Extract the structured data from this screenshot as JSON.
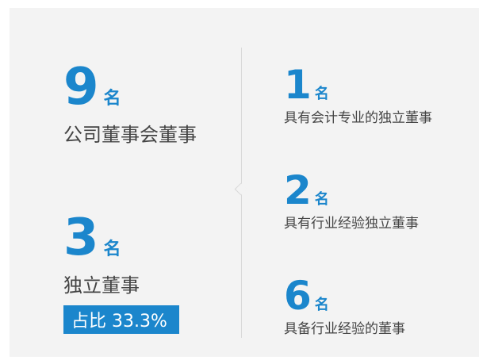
{
  "left": [
    {
      "number": "9",
      "unit": "名",
      "label": "公司董事会董事"
    },
    {
      "number": "3",
      "unit": "名",
      "label": "独立董事",
      "badge": "占比 33.3%"
    }
  ],
  "right": [
    {
      "number": "1",
      "unit": "名",
      "label": "具有会计专业的独立董事"
    },
    {
      "number": "2",
      "unit": "名",
      "label": "具有行业经验独立董事"
    },
    {
      "number": "6",
      "unit": "名",
      "label": "具备行业经验的董事"
    }
  ]
}
